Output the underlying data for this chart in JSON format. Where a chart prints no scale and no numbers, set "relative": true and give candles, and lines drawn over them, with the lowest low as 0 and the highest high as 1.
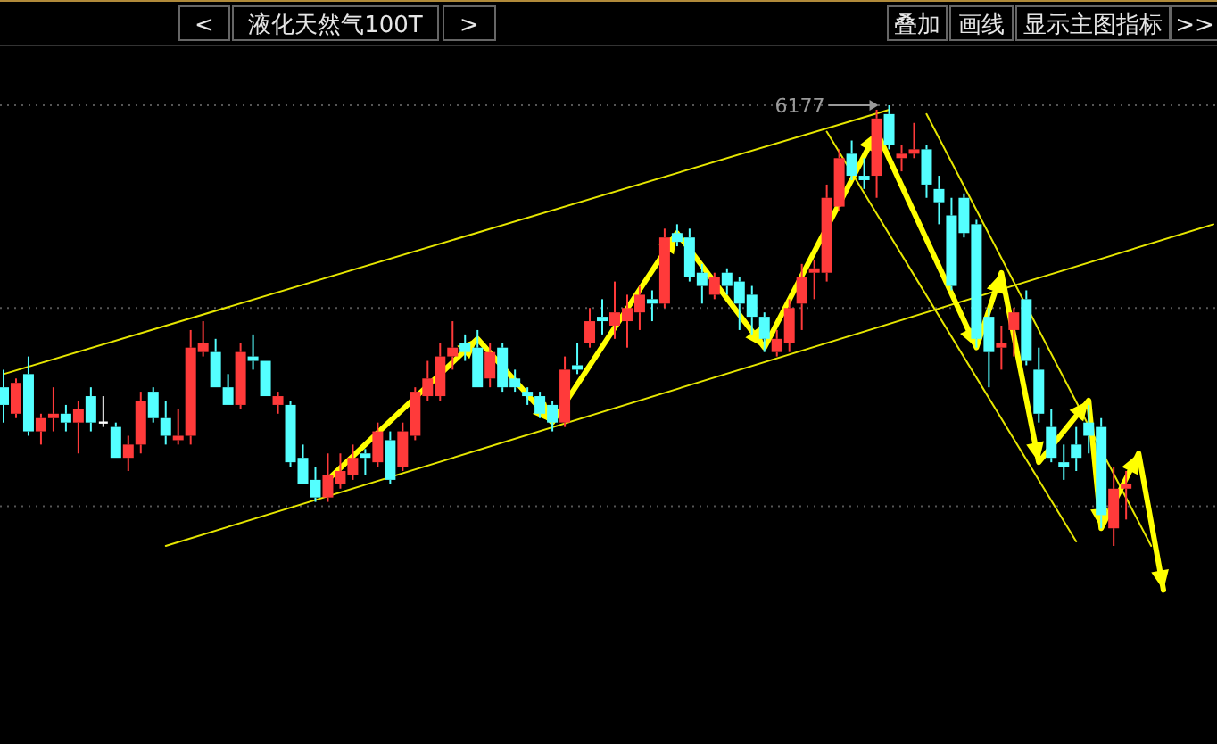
{
  "chart_data": {
    "type": "candlestick",
    "title": "液化天然气100T",
    "relative": true,
    "ref_lines": [
      {
        "axis": "y",
        "value": 1.0,
        "color": "#555555",
        "line_style": "dotted"
      },
      {
        "axis": "y",
        "value": 0.54,
        "color": "#555555",
        "line_style": "dotted"
      },
      {
        "axis": "y",
        "value": 0.09,
        "color": "#555555",
        "line_style": "dotted"
      }
    ],
    "annotations": [
      "<",
      ">",
      "叠加",
      "画线",
      "显示主图指标",
      ">>",
      "6177"
    ],
    "categories": [
      null,
      null,
      null,
      null,
      null,
      null,
      null,
      null,
      null,
      null,
      null,
      null,
      null,
      null,
      null,
      null,
      null,
      null,
      null,
      null,
      null,
      null,
      null,
      null,
      null,
      null,
      null,
      null,
      null,
      null,
      null,
      null,
      null,
      null,
      null,
      null,
      null,
      null,
      null,
      null,
      null,
      null,
      null,
      null,
      null,
      null,
      null,
      null,
      null,
      null,
      null,
      null,
      null,
      null,
      null,
      null,
      null,
      null,
      null,
      null,
      null,
      null,
      null,
      null,
      null,
      null,
      null,
      null,
      null,
      null,
      null,
      null,
      null,
      null,
      null,
      null,
      null,
      null,
      null,
      null,
      null,
      null,
      null,
      null,
      null,
      null,
      null,
      null,
      null,
      null,
      null,
      null,
      null,
      null,
      null,
      null,
      null,
      null
    ],
    "ohlc": [
      [
        0.36,
        0.4,
        0.28,
        0.32
      ],
      [
        0.3,
        0.38,
        0.29,
        0.37
      ],
      [
        0.39,
        0.43,
        0.25,
        0.26
      ],
      [
        0.26,
        0.3,
        0.23,
        0.29
      ],
      [
        0.29,
        0.36,
        0.26,
        0.3
      ],
      [
        0.3,
        0.32,
        0.26,
        0.28
      ],
      [
        0.28,
        0.33,
        0.21,
        0.31
      ],
      [
        0.34,
        0.36,
        0.26,
        0.28
      ],
      [
        0.28,
        0.34,
        0.27,
        0.28
      ],
      [
        0.27,
        0.28,
        0.2,
        0.2
      ],
      [
        0.2,
        0.25,
        0.17,
        0.23
      ],
      [
        0.23,
        0.35,
        0.21,
        0.33
      ],
      [
        0.35,
        0.36,
        0.28,
        0.29
      ],
      [
        0.29,
        0.33,
        0.23,
        0.25
      ],
      [
        0.24,
        0.31,
        0.23,
        0.25
      ],
      [
        0.25,
        0.49,
        0.23,
        0.45
      ],
      [
        0.44,
        0.51,
        0.43,
        0.46
      ],
      [
        0.44,
        0.47,
        0.36,
        0.36
      ],
      [
        0.36,
        0.39,
        0.32,
        0.32
      ],
      [
        0.32,
        0.46,
        0.31,
        0.44
      ],
      [
        0.43,
        0.48,
        0.4,
        0.42
      ],
      [
        0.42,
        0.42,
        0.34,
        0.34
      ],
      [
        0.32,
        0.35,
        0.3,
        0.34
      ],
      [
        0.32,
        0.33,
        0.18,
        0.19
      ],
      [
        0.2,
        0.23,
        0.14,
        0.14
      ],
      [
        0.15,
        0.18,
        0.1,
        0.11
      ],
      [
        0.11,
        0.21,
        0.1,
        0.16
      ],
      [
        0.14,
        0.21,
        0.13,
        0.17
      ],
      [
        0.16,
        0.23,
        0.15,
        0.2
      ],
      [
        0.21,
        0.22,
        0.16,
        0.2
      ],
      [
        0.19,
        0.28,
        0.18,
        0.26
      ],
      [
        0.24,
        0.26,
        0.14,
        0.15
      ],
      [
        0.18,
        0.28,
        0.17,
        0.26
      ],
      [
        0.25,
        0.36,
        0.24,
        0.35
      ],
      [
        0.34,
        0.42,
        0.33,
        0.38
      ],
      [
        0.34,
        0.46,
        0.33,
        0.43
      ],
      [
        0.43,
        0.51,
        0.4,
        0.45
      ],
      [
        0.46,
        0.48,
        0.42,
        0.44
      ],
      [
        0.45,
        0.49,
        0.36,
        0.36
      ],
      [
        0.38,
        0.46,
        0.36,
        0.44
      ],
      [
        0.45,
        0.46,
        0.35,
        0.36
      ],
      [
        0.38,
        0.4,
        0.35,
        0.36
      ],
      [
        0.35,
        0.36,
        0.32,
        0.34
      ],
      [
        0.34,
        0.35,
        0.29,
        0.3
      ],
      [
        0.32,
        0.33,
        0.26,
        0.28
      ],
      [
        0.28,
        0.43,
        0.27,
        0.4
      ],
      [
        0.41,
        0.46,
        0.39,
        0.4
      ],
      [
        0.46,
        0.54,
        0.45,
        0.51
      ],
      [
        0.52,
        0.56,
        0.48,
        0.51
      ],
      [
        0.5,
        0.6,
        0.47,
        0.53
      ],
      [
        0.51,
        0.57,
        0.45,
        0.54
      ],
      [
        0.53,
        0.59,
        0.49,
        0.57
      ],
      [
        0.56,
        0.58,
        0.51,
        0.55
      ],
      [
        0.55,
        0.72,
        0.54,
        0.7
      ],
      [
        0.71,
        0.73,
        0.68,
        0.69
      ],
      [
        0.7,
        0.72,
        0.6,
        0.61
      ],
      [
        0.62,
        0.64,
        0.55,
        0.59
      ],
      [
        0.57,
        0.62,
        0.56,
        0.61
      ],
      [
        0.62,
        0.63,
        0.57,
        0.59
      ],
      [
        0.6,
        0.61,
        0.49,
        0.55
      ],
      [
        0.57,
        0.59,
        0.48,
        0.52
      ],
      [
        0.52,
        0.53,
        0.44,
        0.47
      ],
      [
        0.44,
        0.49,
        0.43,
        0.47
      ],
      [
        0.46,
        0.56,
        0.44,
        0.54
      ],
      [
        0.55,
        0.64,
        0.49,
        0.61
      ],
      [
        0.62,
        0.65,
        0.56,
        0.63
      ],
      [
        0.62,
        0.82,
        0.6,
        0.79
      ],
      [
        0.77,
        0.9,
        0.76,
        0.88
      ],
      [
        0.89,
        0.92,
        0.83,
        0.84
      ],
      [
        0.84,
        0.88,
        0.81,
        0.83
      ],
      [
        0.84,
        0.99,
        0.79,
        0.97
      ],
      [
        0.98,
        1.0,
        0.9,
        0.91
      ],
      [
        0.88,
        0.91,
        0.85,
        0.89
      ],
      [
        0.89,
        0.96,
        0.88,
        0.9
      ],
      [
        0.9,
        0.91,
        0.79,
        0.82
      ],
      [
        0.81,
        0.84,
        0.73,
        0.78
      ],
      [
        0.75,
        0.79,
        0.58,
        0.59
      ],
      [
        0.79,
        0.8,
        0.7,
        0.71
      ],
      [
        0.73,
        0.74,
        0.45,
        0.47
      ],
      [
        0.52,
        0.54,
        0.36,
        0.44
      ],
      [
        0.45,
        0.5,
        0.4,
        0.46
      ],
      [
        0.49,
        0.54,
        0.43,
        0.53
      ],
      [
        0.56,
        0.58,
        0.41,
        0.42
      ],
      [
        0.4,
        0.45,
        0.28,
        0.3
      ],
      [
        0.27,
        0.31,
        0.19,
        0.2
      ],
      [
        0.19,
        0.23,
        0.15,
        0.18
      ],
      [
        0.23,
        0.27,
        0.17,
        0.2
      ],
      [
        0.28,
        0.32,
        0.21,
        0.25
      ],
      [
        0.27,
        0.29,
        0.04,
        0.07
      ],
      [
        0.04,
        0.18,
        0.0,
        0.13
      ],
      [
        0.13,
        0.17,
        0.06,
        0.14
      ],
      null,
      null,
      null,
      null,
      null,
      null,
      null
    ],
    "series": [
      {
        "type": "line",
        "color": "#e6e600",
        "values": [
          0.39,
          null,
          null,
          null,
          null,
          null,
          null,
          null,
          null,
          null,
          null,
          null,
          null,
          null,
          null,
          null,
          null,
          null,
          null,
          null,
          null,
          null,
          null,
          null,
          null,
          null,
          null,
          null,
          null,
          null,
          null,
          null,
          null,
          null,
          null,
          null,
          null,
          null,
          null,
          null,
          null,
          null,
          null,
          null,
          null,
          null,
          null,
          null,
          null,
          null,
          null,
          null,
          null,
          null,
          null,
          null,
          null,
          null,
          null,
          null,
          null,
          null,
          null,
          null,
          null,
          null,
          null,
          null,
          null,
          null,
          null,
          0.99,
          null,
          null,
          null,
          null,
          null,
          null,
          null,
          null,
          null,
          null,
          null,
          null,
          null,
          null,
          null,
          null,
          null,
          null,
          null,
          null,
          null,
          null,
          null,
          null,
          null,
          null
        ]
      },
      {
        "type": "line",
        "color": "#e6e600",
        "values": [
          null,
          null,
          null,
          null,
          null,
          null,
          null,
          null,
          null,
          null,
          null,
          null,
          null,
          0.0,
          null,
          null,
          null,
          null,
          null,
          null,
          null,
          null,
          null,
          null,
          null,
          null,
          null,
          null,
          null,
          null,
          null,
          null,
          null,
          null,
          null,
          null,
          null,
          null,
          null,
          null,
          null,
          null,
          null,
          null,
          null,
          null,
          null,
          null,
          null,
          null,
          null,
          null,
          null,
          null,
          null,
          null,
          null,
          null,
          null,
          null,
          null,
          null,
          null,
          null,
          null,
          null,
          null,
          null,
          null,
          null,
          null,
          null,
          null,
          null,
          null,
          null,
          null,
          null,
          null,
          null,
          null,
          null,
          null,
          null,
          null,
          null,
          null,
          null,
          null,
          null,
          null,
          null,
          null,
          null,
          null,
          null,
          null,
          0.73
        ]
      },
      {
        "type": "line",
        "color": "#e6e600",
        "values": [
          null,
          null,
          null,
          null,
          null,
          null,
          null,
          null,
          null,
          null,
          null,
          null,
          null,
          null,
          null,
          null,
          null,
          null,
          null,
          null,
          null,
          null,
          null,
          null,
          null,
          null,
          null,
          null,
          null,
          null,
          null,
          null,
          null,
          null,
          null,
          null,
          null,
          null,
          null,
          null,
          null,
          null,
          null,
          null,
          null,
          null,
          null,
          null,
          null,
          null,
          null,
          null,
          null,
          null,
          null,
          null,
          null,
          null,
          null,
          null,
          null,
          null,
          null,
          null,
          null,
          null,
          0.94,
          null,
          null,
          null,
          null,
          null,
          null,
          null,
          null,
          null,
          null,
          null,
          null,
          null,
          null,
          null,
          null,
          null,
          null,
          null,
          0.01,
          null,
          null,
          null,
          null,
          null,
          null,
          null,
          null,
          null,
          null,
          null
        ]
      },
      {
        "type": "line",
        "color": "#e6e600",
        "values": [
          null,
          null,
          null,
          null,
          null,
          null,
          null,
          null,
          null,
          null,
          null,
          null,
          null,
          null,
          null,
          null,
          null,
          null,
          null,
          null,
          null,
          null,
          null,
          null,
          null,
          null,
          null,
          null,
          null,
          null,
          null,
          null,
          null,
          null,
          null,
          null,
          null,
          null,
          null,
          null,
          null,
          null,
          null,
          null,
          null,
          null,
          null,
          null,
          null,
          null,
          null,
          null,
          null,
          null,
          null,
          null,
          null,
          null,
          null,
          null,
          null,
          null,
          null,
          null,
          null,
          null,
          null,
          null,
          null,
          null,
          null,
          null,
          null,
          null,
          0.98,
          null,
          null,
          null,
          null,
          null,
          null,
          null,
          null,
          null,
          null,
          null,
          null,
          null,
          null,
          null,
          null,
          null,
          0.0,
          null,
          null,
          null,
          null,
          null
        ]
      },
      {
        "type": "line",
        "color": "#ffff00",
        "values": [
          null,
          null,
          null,
          null,
          null,
          null,
          null,
          null,
          null,
          null,
          null,
          null,
          null,
          null,
          null,
          null,
          null,
          null,
          null,
          null,
          null,
          null,
          null,
          null,
          null,
          null,
          0.15,
          null,
          null,
          null,
          null,
          null,
          null,
          null,
          null,
          null,
          null,
          null,
          0.47,
          null,
          null,
          null,
          null,
          null,
          0.28,
          null,
          null,
          null,
          null,
          null,
          null,
          null,
          null,
          null,
          0.71,
          null,
          null,
          null,
          null,
          null,
          null,
          0.45,
          null,
          null,
          null,
          null,
          null,
          null,
          null,
          null,
          0.94,
          null,
          null,
          null,
          null,
          null,
          null,
          null,
          0.45,
          null,
          0.62,
          null,
          null,
          0.19,
          null,
          null,
          null,
          0.33,
          0.04,
          null,
          null,
          0.21,
          null,
          -0.1,
          null,
          null,
          null,
          null
        ]
      }
    ]
  }
}
